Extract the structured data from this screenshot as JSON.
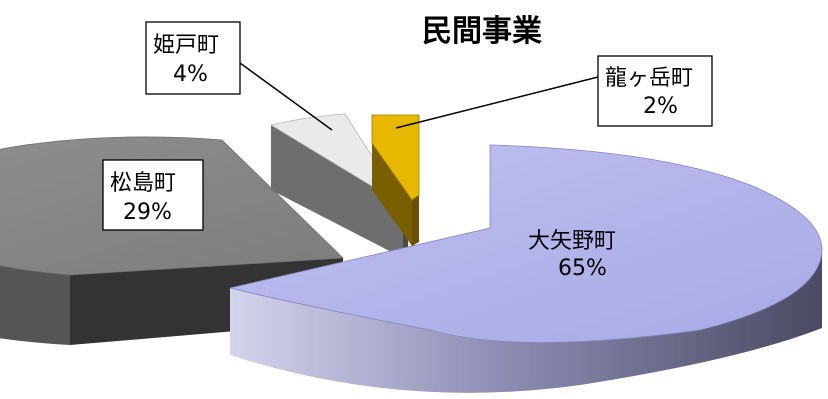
{
  "chart_data": {
    "type": "pie",
    "title": "民間事業",
    "exploded": true,
    "three_d": true,
    "slices": [
      {
        "label": "大矢野町",
        "value": 65,
        "value_label": "65%",
        "color": "#b9b9f0"
      },
      {
        "label": "松島町",
        "value": 29,
        "value_label": "29%",
        "color": "#8a8a8a"
      },
      {
        "label": "姫戸町",
        "value": 4,
        "value_label": "4%",
        "color": "#e9e9e9"
      },
      {
        "label": "龍ヶ岳町",
        "value": 2,
        "value_label": "2%",
        "color": "#e8b800"
      }
    ]
  }
}
